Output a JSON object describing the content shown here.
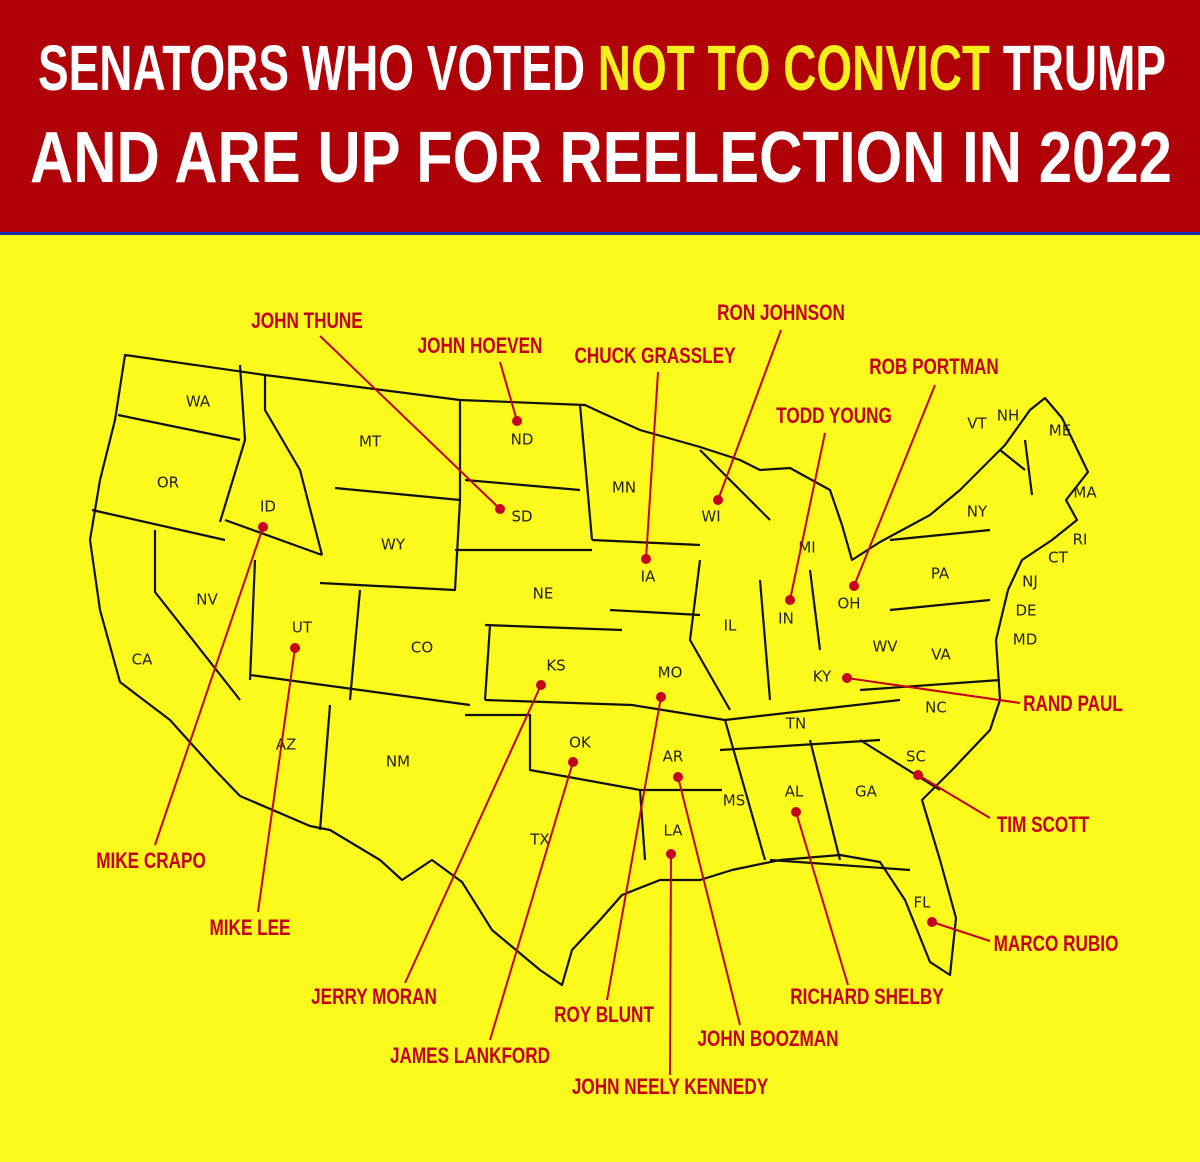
{
  "header": {
    "title": {
      "line1_start": "SENATORS WHO VOTED",
      "line1_highlight": "NOT TO CONVICT",
      "line1_end": "TRUMP",
      "line2": "AND ARE UP FOR REELECTION IN 2022"
    }
  },
  "states": [
    "WA",
    "OR",
    "CA",
    "NV",
    "ID",
    "MT",
    "WY",
    "UT",
    "CO",
    "AZ",
    "NM",
    "ND",
    "SD",
    "NE",
    "KS",
    "OK",
    "TX",
    "MN",
    "IA",
    "MO",
    "AR",
    "LA",
    "WI",
    "IL",
    "MI",
    "IN",
    "OH",
    "KY",
    "TN",
    "MS",
    "AL",
    "GA",
    "FL",
    "SC",
    "NC",
    "VA",
    "WV",
    "PA",
    "NY",
    "VT",
    "NH",
    "ME",
    "MA",
    "RI",
    "CT",
    "NJ",
    "DE",
    "MD"
  ],
  "senators": [
    "JOHN THUNE",
    "JOHN HOEVEN",
    "CHUCK GRASSLEY",
    "RON JOHNSON",
    "ROB PORTMAN",
    "TODD YOUNG",
    "RAND PAUL",
    "TIM SCOTT",
    "MARCO RUBIO",
    "RICHARD SHELBY",
    "JOHN BOOZMAN",
    "JOHN NEELY KENNEDY",
    "ROY BLUNT",
    "JAMES LANKFORD",
    "JERRY MORAN",
    "MIKE LEE",
    "MIKE CRAPO"
  ]
}
